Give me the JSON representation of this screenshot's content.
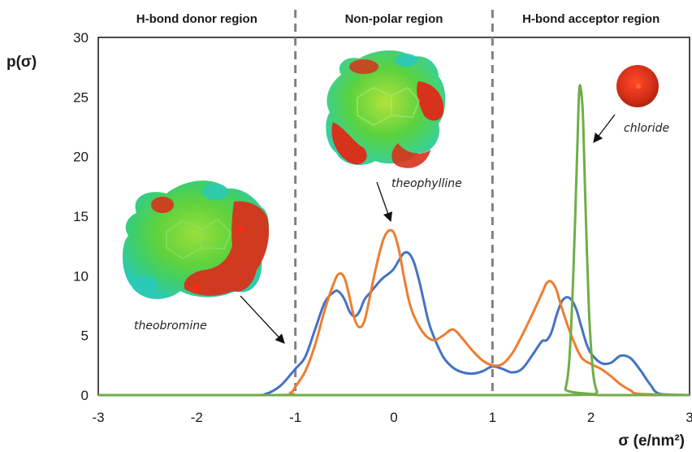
{
  "chart_data": {
    "type": "line",
    "title": "",
    "ylabel": "p(σ)",
    "xlabel": "σ (e/nm²)",
    "xlim": [
      -3,
      3
    ],
    "ylim": [
      0,
      30
    ],
    "x_ticks": [
      -3,
      -2,
      -1,
      0,
      1,
      2,
      3
    ],
    "y_ticks": [
      0,
      5,
      10,
      15,
      20,
      25,
      30
    ],
    "grid": false,
    "legend": "none",
    "region_dividers": [
      -1,
      1
    ],
    "regions": [
      {
        "label": "H-bond donor region",
        "x_center": -2
      },
      {
        "label": "Non-polar region",
        "x_center": 0
      },
      {
        "label": "H-bond acceptor region",
        "x_center": 2
      }
    ],
    "series": [
      {
        "color": "#4472c4",
        "x": [
          -3,
          -1.5,
          -1.3,
          -1.15,
          -1.0,
          -0.9,
          -0.8,
          -0.7,
          -0.6,
          -0.55,
          -0.5,
          -0.45,
          -0.4,
          -0.35,
          -0.3,
          -0.25,
          -0.2,
          -0.15,
          -0.1,
          -0.05,
          0.0,
          0.05,
          0.1,
          0.15,
          0.2,
          0.25,
          0.3,
          0.35,
          0.4,
          0.5,
          0.6,
          0.7,
          0.8,
          0.9,
          1.0,
          1.1,
          1.2,
          1.3,
          1.4,
          1.5,
          1.55,
          1.6,
          1.65,
          1.7,
          1.75,
          1.8,
          1.85,
          1.9,
          1.95,
          2.0,
          2.1,
          2.2,
          2.3,
          2.4,
          2.5,
          2.6,
          2.7,
          3.0
        ],
        "y": [
          0,
          0,
          0.1,
          0.8,
          2.2,
          3.2,
          5.5,
          7.8,
          8.7,
          8.6,
          8.0,
          7.0,
          6.6,
          7.0,
          8.0,
          8.5,
          9.0,
          9.5,
          9.9,
          10.2,
          10.6,
          11.3,
          11.9,
          11.9,
          11.2,
          9.8,
          8.0,
          6.2,
          5.0,
          3.2,
          2.3,
          1.9,
          1.8,
          2.0,
          2.4,
          2.2,
          1.9,
          2.2,
          3.3,
          4.5,
          4.6,
          5.3,
          6.7,
          7.8,
          8.2,
          8.0,
          7.2,
          5.8,
          4.4,
          3.5,
          2.7,
          2.7,
          3.3,
          3.1,
          2.1,
          0.9,
          0.1,
          0
        ]
      },
      {
        "color": "#ed7d31",
        "x": [
          -3,
          -1.2,
          -1.05,
          -1.0,
          -0.9,
          -0.8,
          -0.7,
          -0.6,
          -0.55,
          -0.5,
          -0.45,
          -0.4,
          -0.35,
          -0.3,
          -0.25,
          -0.2,
          -0.15,
          -0.1,
          -0.05,
          0.0,
          0.05,
          0.1,
          0.15,
          0.2,
          0.3,
          0.4,
          0.5,
          0.6,
          0.7,
          0.8,
          0.9,
          1.0,
          1.1,
          1.2,
          1.3,
          1.4,
          1.5,
          1.55,
          1.6,
          1.65,
          1.7,
          1.8,
          1.9,
          2.0,
          2.1,
          2.2,
          2.3,
          2.4,
          2.5,
          3.0
        ],
        "y": [
          0,
          0,
          0.2,
          0.7,
          2.0,
          4.2,
          7.2,
          9.6,
          10.2,
          9.8,
          8.2,
          6.4,
          5.7,
          6.2,
          8.0,
          10.0,
          11.8,
          13.2,
          13.8,
          13.6,
          12.2,
          10.0,
          8.0,
          6.7,
          5.2,
          4.6,
          5.0,
          5.5,
          4.7,
          3.7,
          2.9,
          2.5,
          2.6,
          3.5,
          5.0,
          6.7,
          8.5,
          9.4,
          9.5,
          8.8,
          7.4,
          5.0,
          3.2,
          2.6,
          2.2,
          1.6,
          0.9,
          0.4,
          0.1,
          0
        ]
      },
      {
        "color": "#70ad47",
        "x": [
          -3,
          1.7,
          1.74,
          1.78,
          1.82,
          1.86,
          1.88,
          1.9,
          1.92,
          1.94,
          1.98,
          2.02,
          2.06,
          2.1,
          3.0
        ],
        "y": [
          0,
          0,
          0.5,
          3.0,
          10.0,
          20.5,
          25.5,
          25.5,
          23.0,
          17.0,
          7.0,
          2.0,
          0.3,
          0,
          0
        ]
      }
    ],
    "annotations": [
      {
        "text": "theobromine"
      },
      {
        "text": "theophylline"
      },
      {
        "text": "chloride"
      }
    ]
  }
}
